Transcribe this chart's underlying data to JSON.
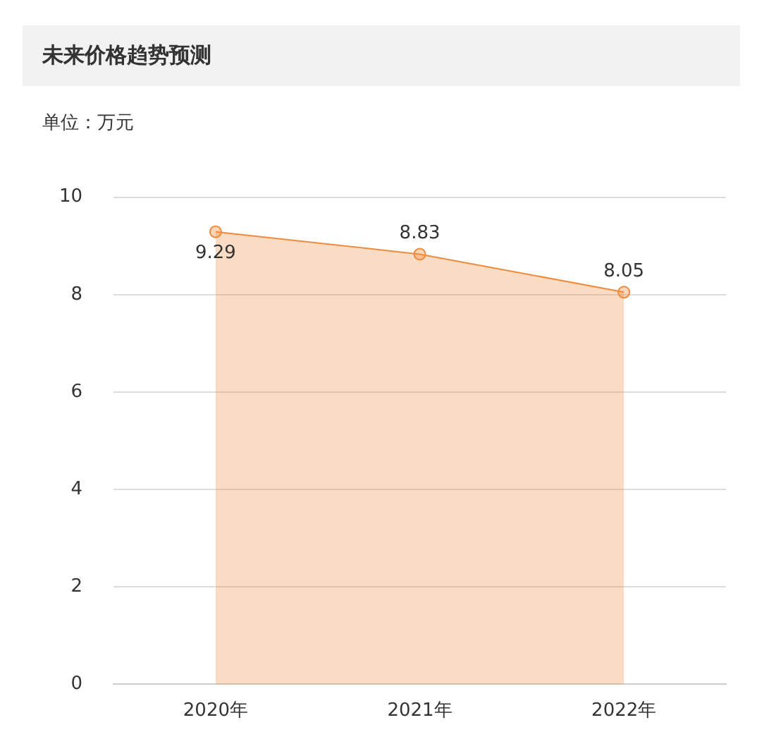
{
  "chart_data": {
    "type": "area",
    "title": "未来价格趋势预测",
    "ylabel": "单位：万元",
    "categories": [
      "2020年",
      "2021年",
      "2022年"
    ],
    "series": [
      {
        "color": "#f08a3c",
        "values": [
          9.29,
          8.83,
          8.05
        ]
      }
    ],
    "ylim": [
      0,
      10
    ],
    "yticks": [
      0,
      2,
      4,
      6,
      8,
      10
    ],
    "grid": "y",
    "legend": false,
    "marker": "circle",
    "data_labels": true
  }
}
